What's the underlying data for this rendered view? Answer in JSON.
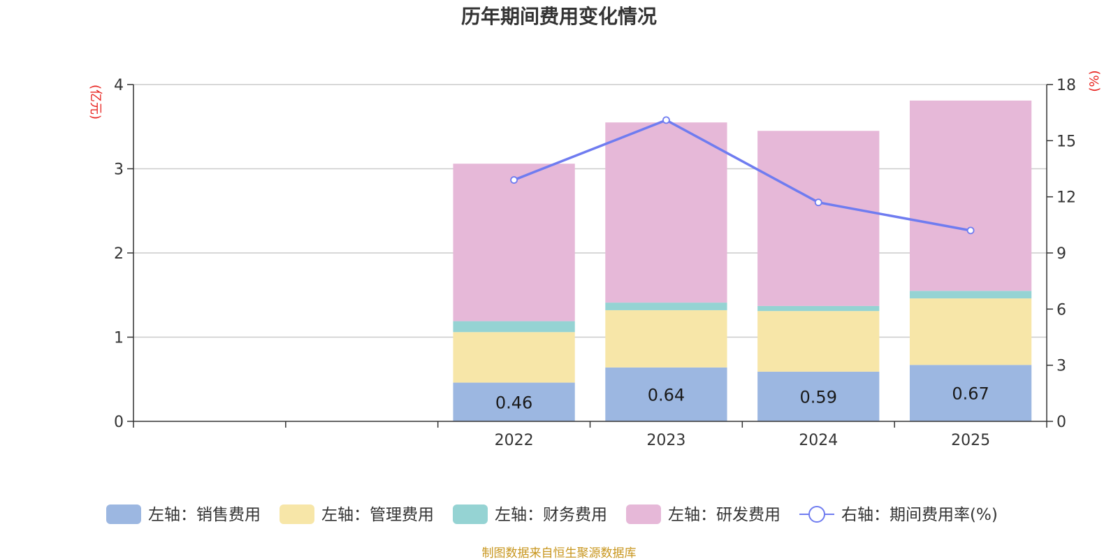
{
  "chart_data": {
    "type": "bar",
    "stacked": true,
    "title": "历年期间费用变化情况",
    "left_axis_unit": "(亿元)",
    "right_axis_unit": "(%)",
    "left_ylim": [
      0,
      4
    ],
    "left_yticks": [
      "0",
      "1",
      "2",
      "3",
      "4"
    ],
    "right_ylim": [
      0,
      18
    ],
    "right_yticks": [
      "0",
      "3",
      "6",
      "9",
      "12",
      "15",
      "18"
    ],
    "grid": true,
    "categories": [
      "",
      "",
      "2022",
      "2023",
      "2024",
      "2025"
    ],
    "series": [
      {
        "name": "左轴：销售费用",
        "axis": "left",
        "color": "#9cb7e1",
        "values": [
          null,
          null,
          0.46,
          0.64,
          0.59,
          0.67
        ],
        "labels": [
          "",
          "",
          "0.46",
          "0.64",
          "0.59",
          "0.67"
        ]
      },
      {
        "name": "左轴：管理费用",
        "axis": "left",
        "color": "#f7e6a8",
        "values": [
          null,
          null,
          0.6,
          0.68,
          0.72,
          0.79
        ]
      },
      {
        "name": "左轴：财务费用",
        "axis": "left",
        "color": "#95d3d3",
        "values": [
          null,
          null,
          0.13,
          0.09,
          0.06,
          0.09
        ]
      },
      {
        "name": "左轴：研发费用",
        "axis": "left",
        "color": "#e6b8d8",
        "values": [
          null,
          null,
          1.87,
          2.14,
          2.08,
          2.26
        ]
      },
      {
        "name": "右轴：期间费用率(%)",
        "axis": "right",
        "type": "line",
        "color": "#6f7cf0",
        "values": [
          null,
          null,
          12.9,
          16.1,
          11.7,
          10.2
        ]
      }
    ],
    "legend_position": "bottom-center",
    "source": "制图数据来自恒生聚源数据库"
  }
}
